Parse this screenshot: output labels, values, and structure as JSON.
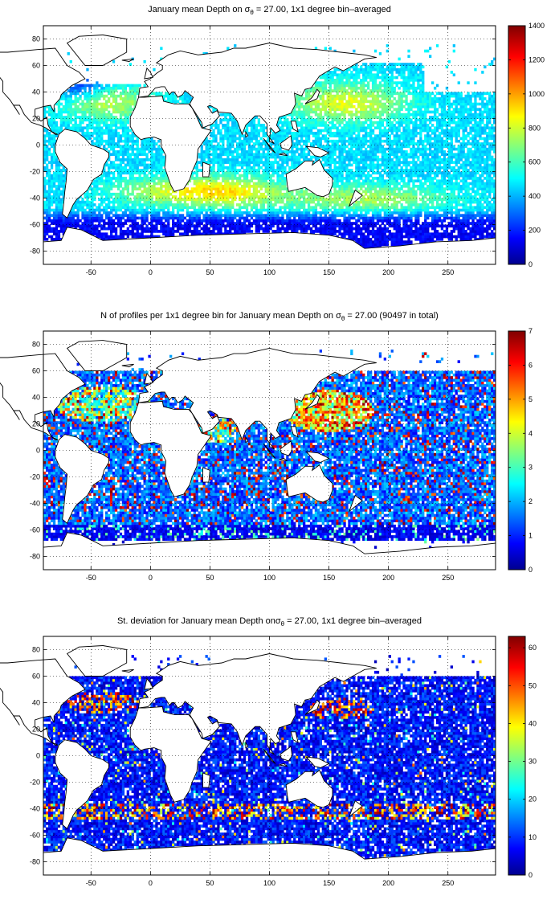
{
  "panels": [
    {
      "id": "mean-depth",
      "title": {
        "main": "January mean Depth on σ",
        "sub": "θ",
        "rest": " = 27.00, 1x1 degree bin–averaged"
      },
      "colorbar": {
        "min": 0,
        "max": 1400,
        "ticks": [
          "0",
          "200",
          "400",
          "600",
          "800",
          "1000",
          "1200",
          "1400"
        ]
      }
    },
    {
      "id": "profile-count",
      "title": {
        "main": "N of profiles per 1x1 degree bin for January mean Depth on σ",
        "sub": "θ",
        "rest": " = 27.00 (90497 in total)"
      },
      "colorbar": {
        "min": 0,
        "max": 7,
        "ticks": [
          "0",
          "1",
          "2",
          "3",
          "4",
          "5",
          "6",
          "7"
        ]
      }
    },
    {
      "id": "std-deviation",
      "title": {
        "main": "St. deviation for January mean Depth onσ",
        "sub": "θ",
        "rest": " = 27.00, 1x1 degree bin–averaged"
      },
      "colorbar": {
        "min": 0,
        "max": 63,
        "ticks": [
          "0",
          "10",
          "20",
          "30",
          "40",
          "50",
          "60"
        ]
      }
    }
  ],
  "axes": {
    "x_ticks": [
      "-50",
      "0",
      "50",
      "100",
      "150",
      "200",
      "250"
    ],
    "y_ticks": [
      "80",
      "60",
      "40",
      "20",
      "0",
      "-20",
      "-40",
      "-60",
      "-80"
    ]
  },
  "colormap": "jet",
  "land_color": "#ffffff"
}
